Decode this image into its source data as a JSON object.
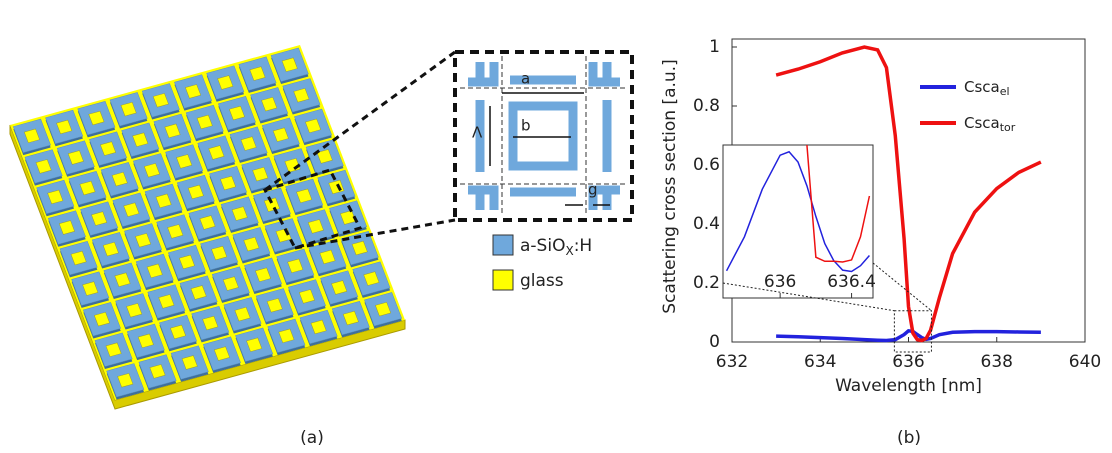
{
  "figure_a": {
    "caption": "(a)",
    "unit_cell": {
      "a": "a",
      "b": "b",
      "period": "Λ",
      "gap": "g"
    },
    "legend": [
      {
        "label": "a-SiO",
        "subscript": "X",
        "suffix": ":H",
        "color": "#6fa8dc"
      },
      {
        "label": "glass",
        "color": "#ffff00"
      }
    ]
  },
  "chart_data": [
    {
      "type": "line",
      "caption": "(b)",
      "x_label": "Wavelength [nm]",
      "y_label": "Scattering cross section [a.u.]",
      "x": [
        633,
        633.5,
        634,
        634.5,
        635,
        635.3,
        635.5,
        635.7,
        635.9,
        636.0,
        636.1,
        636.2,
        636.3,
        636.4,
        636.5,
        636.7,
        637,
        637.5,
        638,
        638.5,
        639
      ],
      "series": [
        {
          "name": "Csca",
          "name_subscript": "el",
          "color": "#2222dd",
          "values": [
            0.02,
            0.018,
            0.015,
            0.012,
            0.008,
            0.006,
            0.005,
            0.008,
            0.025,
            0.038,
            0.036,
            0.025,
            0.015,
            0.009,
            0.012,
            0.025,
            0.033,
            0.035,
            0.035,
            0.034,
            0.033
          ]
        },
        {
          "name": "Csca",
          "name_subscript": "tor",
          "color": "#ee1111",
          "values": [
            0.905,
            0.925,
            0.95,
            0.98,
            1.0,
            0.99,
            0.93,
            0.7,
            0.35,
            0.12,
            0.03,
            0.008,
            0.005,
            0.012,
            0.04,
            0.15,
            0.3,
            0.44,
            0.52,
            0.575,
            0.61
          ]
        }
      ],
      "xlim": [
        632,
        640
      ],
      "ylim": [
        0,
        1
      ],
      "xticks": [
        632,
        634,
        636,
        638,
        640
      ],
      "yticks": [
        0,
        0.2,
        0.4,
        0.6,
        0.8,
        1
      ],
      "legend": "upper right"
    },
    {
      "type": "line",
      "x": [
        635.7,
        635.8,
        635.9,
        636.0,
        636.05,
        636.1,
        636.15,
        636.2,
        636.25,
        636.3,
        636.35,
        636.4,
        636.45,
        636.5
      ],
      "series": [
        {
          "color": "#2222dd",
          "values": [
            0.008,
            0.018,
            0.032,
            0.042,
            0.043,
            0.04,
            0.033,
            0.024,
            0.016,
            0.011,
            0.0082,
            0.0078,
            0.0095,
            0.0125
          ]
        },
        {
          "color": "#ee1111",
          "values": [
            null,
            null,
            null,
            null,
            null,
            null,
            0.045,
            0.012,
            0.0108,
            0.0108,
            0.0106,
            0.0112,
            0.018,
            0.03
          ]
        }
      ],
      "xlim": [
        635.68,
        636.52
      ],
      "ylim": [
        0,
        0.045
      ],
      "xticks": [
        636,
        636.4
      ]
    }
  ]
}
